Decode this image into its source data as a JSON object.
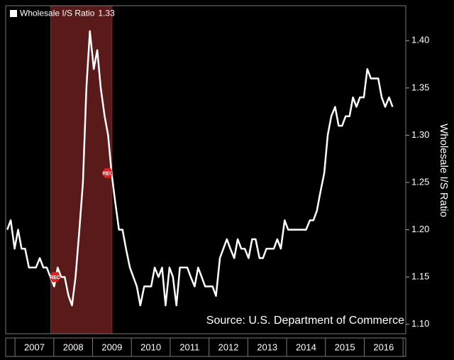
{
  "chart_data": {
    "type": "line",
    "series": [
      {
        "name": "Wholesale I/S Ratio",
        "color": "#ffffff",
        "x": [
          2006.8,
          2006.89,
          2006.99,
          2007.08,
          2007.17,
          2007.26,
          2007.36,
          2007.45,
          2007.54,
          2007.64,
          2007.73,
          2007.82,
          2007.91,
          2008.01,
          2008.1,
          2008.19,
          2008.28,
          2008.38,
          2008.47,
          2008.56,
          2008.66,
          2008.75,
          2008.84,
          2008.93,
          2009.03,
          2009.12,
          2009.21,
          2009.31,
          2009.4,
          2009.49,
          2009.58,
          2009.68,
          2009.77,
          2009.86,
          2009.96,
          2010.05,
          2010.14,
          2010.23,
          2010.33,
          2010.42,
          2010.51,
          2010.6,
          2010.7,
          2010.79,
          2010.88,
          2010.98,
          2011.07,
          2011.16,
          2011.25,
          2011.35,
          2011.44,
          2011.53,
          2011.63,
          2011.72,
          2011.81,
          2011.9,
          2012.0,
          2012.09,
          2012.18,
          2012.28,
          2012.37,
          2012.46,
          2012.55,
          2012.65,
          2012.74,
          2012.83,
          2012.92,
          2013.02,
          2013.11,
          2013.2,
          2013.3,
          2013.39,
          2013.48,
          2013.57,
          2013.67,
          2013.76,
          2013.85,
          2013.95,
          2014.04,
          2014.13,
          2014.22,
          2014.32,
          2014.41,
          2014.5,
          2014.6,
          2014.69,
          2014.78,
          2014.87,
          2014.97,
          2015.06,
          2015.15,
          2015.25,
          2015.34,
          2015.43,
          2015.52,
          2015.62,
          2015.71,
          2015.8,
          2015.89,
          2015.99,
          2016.08,
          2016.17,
          2016.27,
          2016.36,
          2016.45,
          2016.54,
          2016.64,
          2016.73
        ],
        "values": [
          1.2,
          1.21,
          1.18,
          1.2,
          1.18,
          1.18,
          1.16,
          1.16,
          1.16,
          1.17,
          1.16,
          1.16,
          1.15,
          1.14,
          1.16,
          1.15,
          1.15,
          1.13,
          1.12,
          1.15,
          1.2,
          1.25,
          1.35,
          1.41,
          1.37,
          1.39,
          1.35,
          1.32,
          1.3,
          1.26,
          1.23,
          1.2,
          1.2,
          1.18,
          1.16,
          1.15,
          1.14,
          1.12,
          1.14,
          1.14,
          1.14,
          1.16,
          1.15,
          1.16,
          1.12,
          1.16,
          1.15,
          1.12,
          1.16,
          1.16,
          1.16,
          1.15,
          1.14,
          1.16,
          1.15,
          1.14,
          1.14,
          1.14,
          1.13,
          1.17,
          1.18,
          1.19,
          1.18,
          1.17,
          1.19,
          1.18,
          1.18,
          1.17,
          1.19,
          1.19,
          1.17,
          1.17,
          1.18,
          1.18,
          1.18,
          1.19,
          1.18,
          1.21,
          1.2,
          1.2,
          1.2,
          1.2,
          1.2,
          1.2,
          1.21,
          1.21,
          1.22,
          1.24,
          1.26,
          1.3,
          1.32,
          1.33,
          1.31,
          1.31,
          1.32,
          1.32,
          1.34,
          1.33,
          1.34,
          1.34,
          1.37,
          1.36,
          1.36,
          1.36,
          1.34,
          1.33,
          1.34,
          1.33
        ]
      }
    ],
    "xlim": [
      2006.76,
      2017.07
    ],
    "xticks": [
      2007,
      2008,
      2009,
      2010,
      2011,
      2012,
      2013,
      2014,
      2015,
      2016,
      2017
    ],
    "x_labels": [
      "2007",
      "2008",
      "2009",
      "2010",
      "2011",
      "2012",
      "2013",
      "2014",
      "2015",
      "2016"
    ],
    "ylim": [
      1.09,
      1.437
    ],
    "yticks": [
      {
        "value": 1.1,
        "label": "1.10"
      },
      {
        "value": 1.15,
        "label": "1.15"
      },
      {
        "value": 1.2,
        "label": "1.20"
      },
      {
        "value": 1.25,
        "label": "1.25"
      },
      {
        "value": 1.3,
        "label": "1.30"
      },
      {
        "value": 1.35,
        "label": "1.35"
      },
      {
        "value": 1.4,
        "label": "1.40"
      }
    ],
    "y_axis_label": "Wholesale I/S Ratio",
    "y_axis_side": "right",
    "recession": {
      "start": 2007.92,
      "end": 2009.5,
      "label": "REC",
      "color": "#5a1a1a"
    },
    "annotation": "Source: U.S. Department of Commerce",
    "legend": "top-left"
  }
}
